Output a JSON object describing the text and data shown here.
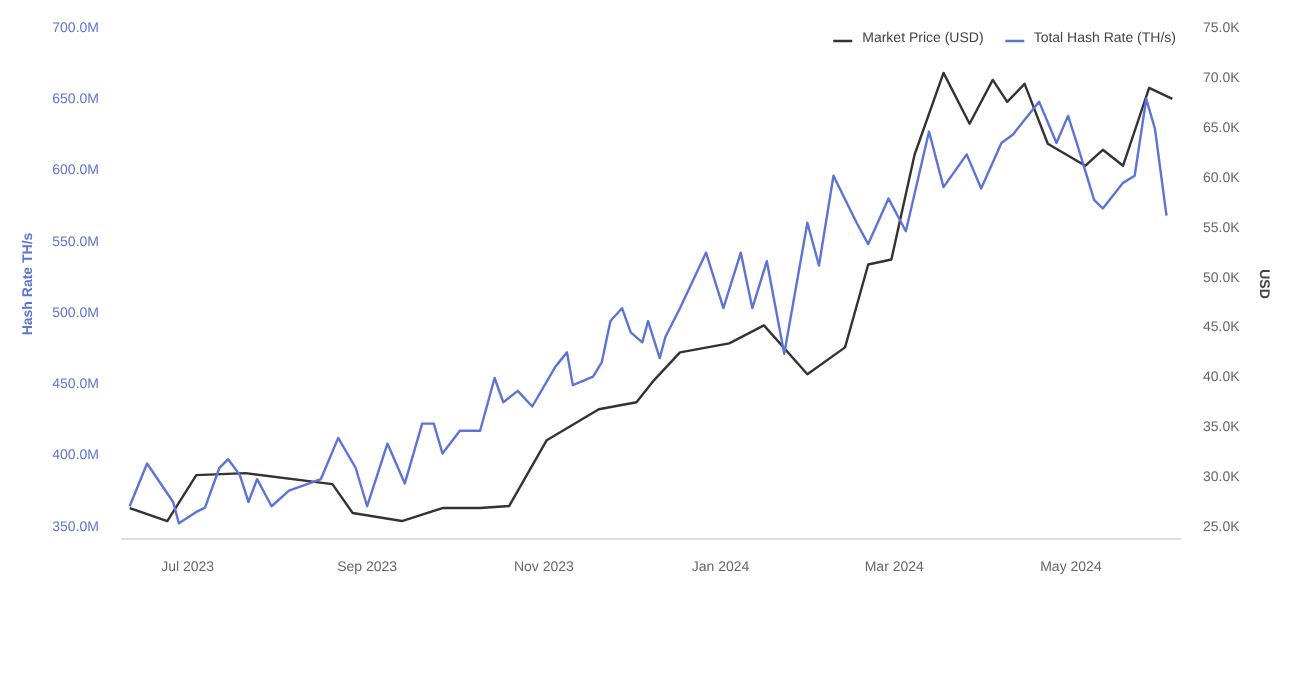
{
  "chart_data": {
    "type": "line",
    "ylabel": "Hash Rate TH/s",
    "y2label": "USD",
    "legend": "top right",
    "grid": false,
    "marker": "none",
    "line_style": "solid",
    "xlim": [
      "2023-06-08",
      "2024-06-08"
    ],
    "xticks": [
      {
        "value": "2023-07-01",
        "label": "Jul 2023"
      },
      {
        "value": "2023-09-01",
        "label": "Sep 2023"
      },
      {
        "value": "2023-11-01",
        "label": "Nov 2023"
      },
      {
        "value": "2024-01-01",
        "label": "Jan 2024"
      },
      {
        "value": "2024-03-01",
        "label": "Mar 2024"
      },
      {
        "value": "2024-05-01",
        "label": "May 2024"
      }
    ],
    "ylim": [
      342,
      700
    ],
    "yticks": [
      {
        "value": 350,
        "label": "350.0M"
      },
      {
        "value": 400,
        "label": "400.0M"
      },
      {
        "value": 450,
        "label": "450.0M"
      },
      {
        "value": 500,
        "label": "500.0M"
      },
      {
        "value": 550,
        "label": "550.0M"
      },
      {
        "value": 600,
        "label": "600.0M"
      },
      {
        "value": 650,
        "label": "650.0M"
      },
      {
        "value": 700,
        "label": "700.0M"
      }
    ],
    "y2lim": [
      23.9,
      75
    ],
    "y2ticks": [
      {
        "value": 25,
        "label": "25.0K"
      },
      {
        "value": 30,
        "label": "30.0K"
      },
      {
        "value": 35,
        "label": "35.0K"
      },
      {
        "value": 40,
        "label": "40.0K"
      },
      {
        "value": 45,
        "label": "45.0K"
      },
      {
        "value": 50,
        "label": "50.0K"
      },
      {
        "value": 55,
        "label": "55.0K"
      },
      {
        "value": 60,
        "label": "60.0K"
      },
      {
        "value": 65,
        "label": "65.0K"
      },
      {
        "value": 70,
        "label": "70.0K"
      },
      {
        "value": 75,
        "label": "75.0K"
      }
    ],
    "series": [
      {
        "name": "Market Price (USD)",
        "color": "#333333",
        "axis": "y2",
        "x": [
          "2023-06-11",
          "2023-06-24",
          "2023-07-04",
          "2023-07-21",
          "2023-08-20",
          "2023-08-27",
          "2023-09-13",
          "2023-09-27",
          "2023-10-10",
          "2023-10-20",
          "2023-11-02",
          "2023-11-20",
          "2023-12-03",
          "2023-12-09",
          "2023-12-18",
          "2024-01-04",
          "2024-01-16",
          "2024-01-31",
          "2024-02-13",
          "2024-02-21",
          "2024-02-29",
          "2024-03-08",
          "2024-03-18",
          "2024-03-27",
          "2024-04-04",
          "2024-04-09",
          "2024-04-15",
          "2024-04-23",
          "2024-05-06",
          "2024-05-12",
          "2024-05-19",
          "2024-05-28",
          "2024-06-05"
        ],
        "values": [
          27.0,
          25.7,
          30.3,
          30.5,
          29.4,
          26.5,
          25.7,
          27.0,
          27.0,
          27.2,
          33.8,
          36.9,
          37.6,
          39.8,
          42.6,
          43.5,
          45.3,
          40.4,
          43.1,
          51.4,
          51.9,
          62.4,
          70.6,
          65.5,
          69.9,
          67.7,
          69.5,
          63.5,
          61.3,
          62.9,
          61.3,
          69.1,
          68.0
        ]
      },
      {
        "name": "Total Hash Rate (TH/s)",
        "color": "#5b74d6",
        "axis": "y",
        "x": [
          "2023-06-11",
          "2023-06-17",
          "2023-06-26",
          "2023-06-28",
          "2023-07-04",
          "2023-07-07",
          "2023-07-12",
          "2023-07-15",
          "2023-07-19",
          "2023-07-22",
          "2023-07-25",
          "2023-07-30",
          "2023-08-05",
          "2023-08-12",
          "2023-08-16",
          "2023-08-22",
          "2023-08-28",
          "2023-09-01",
          "2023-09-08",
          "2023-09-14",
          "2023-09-20",
          "2023-09-24",
          "2023-09-27",
          "2023-10-03",
          "2023-10-10",
          "2023-10-15",
          "2023-10-18",
          "2023-10-23",
          "2023-10-28",
          "2023-11-05",
          "2023-11-09",
          "2023-11-11",
          "2023-11-18",
          "2023-11-21",
          "2023-11-24",
          "2023-11-28",
          "2023-12-01",
          "2023-12-05",
          "2023-12-07",
          "2023-12-11",
          "2023-12-13",
          "2023-12-18",
          "2023-12-27",
          "2024-01-02",
          "2024-01-08",
          "2024-01-12",
          "2024-01-17",
          "2024-01-23",
          "2024-01-31",
          "2024-02-04",
          "2024-02-09",
          "2024-02-17",
          "2024-02-21",
          "2024-02-28",
          "2024-03-05",
          "2024-03-13",
          "2024-03-18",
          "2024-03-26",
          "2024-03-31",
          "2024-04-07",
          "2024-04-11",
          "2024-04-20",
          "2024-04-26",
          "2024-04-30",
          "2024-05-03",
          "2024-05-09",
          "2024-05-12",
          "2024-05-19",
          "2024-05-23",
          "2024-05-27",
          "2024-05-30",
          "2024-06-03"
        ],
        "values": [
          365,
          395,
          368,
          353,
          361,
          364,
          392,
          398,
          387,
          368,
          384,
          365,
          376,
          381,
          384,
          413,
          392,
          365,
          409,
          381,
          423,
          423,
          402,
          418,
          418,
          455,
          438,
          446,
          435,
          463,
          473,
          450,
          456,
          466,
          495,
          504,
          487,
          480,
          495,
          469,
          484,
          504,
          543,
          504,
          543,
          504,
          537,
          472,
          564,
          534,
          597,
          564,
          549,
          581,
          558,
          628,
          589,
          612,
          588,
          620,
          626,
          649,
          620,
          639,
          620,
          580,
          574,
          592,
          597,
          651,
          630,
          569
        ]
      }
    ]
  }
}
